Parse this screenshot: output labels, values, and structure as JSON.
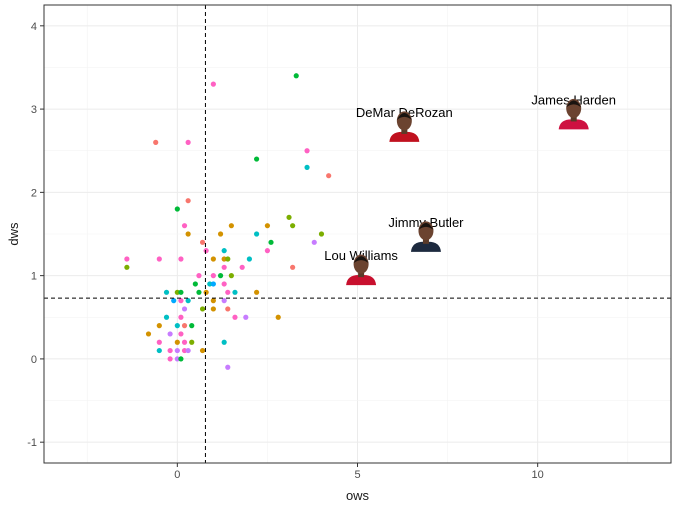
{
  "chart_data": {
    "type": "scatter",
    "xlabel": "ows",
    "ylabel": "dws",
    "xlim": [
      -3.7,
      13.7
    ],
    "ylim": [
      -1.25,
      4.25
    ],
    "x_ticks": [
      0,
      5,
      10
    ],
    "y_ticks": [
      -1,
      0,
      1,
      2,
      3,
      4
    ],
    "x_tick_labels": [
      "0",
      "5",
      "10"
    ],
    "y_tick_labels": [
      "-1",
      "0",
      "1",
      "2",
      "3",
      "4"
    ],
    "grid": true,
    "legend": "none",
    "reference_lines": {
      "vertical_x": 0.78,
      "horizontal_y": 0.73
    },
    "palette": [
      "#F8766D",
      "#7CAE00",
      "#00BFC4",
      "#C77CFF",
      "#FF61C3",
      "#D39200",
      "#00BA38",
      "#00A9FF"
    ],
    "points": [
      {
        "x": 3.3,
        "y": 3.4,
        "c": 6
      },
      {
        "x": 1.0,
        "y": 3.3,
        "c": 4
      },
      {
        "x": -0.6,
        "y": 2.6,
        "c": 0
      },
      {
        "x": 0.3,
        "y": 2.6,
        "c": 4
      },
      {
        "x": 2.2,
        "y": 2.4,
        "c": 6
      },
      {
        "x": 3.6,
        "y": 2.5,
        "c": 4
      },
      {
        "x": 3.6,
        "y": 2.3,
        "c": 2
      },
      {
        "x": 4.2,
        "y": 2.2,
        "c": 0
      },
      {
        "x": 0.3,
        "y": 1.9,
        "c": 0
      },
      {
        "x": 0.0,
        "y": 1.8,
        "c": 6
      },
      {
        "x": 3.1,
        "y": 1.7,
        "c": 1
      },
      {
        "x": 0.2,
        "y": 1.6,
        "c": 4
      },
      {
        "x": 1.5,
        "y": 1.6,
        "c": 5
      },
      {
        "x": 2.5,
        "y": 1.6,
        "c": 5
      },
      {
        "x": 3.2,
        "y": 1.6,
        "c": 1
      },
      {
        "x": 0.3,
        "y": 1.5,
        "c": 5
      },
      {
        "x": 1.2,
        "y": 1.5,
        "c": 5
      },
      {
        "x": 2.2,
        "y": 1.5,
        "c": 2
      },
      {
        "x": 4.0,
        "y": 1.5,
        "c": 1
      },
      {
        "x": 0.7,
        "y": 1.4,
        "c": 0
      },
      {
        "x": 2.6,
        "y": 1.4,
        "c": 6
      },
      {
        "x": 3.8,
        "y": 1.4,
        "c": 3
      },
      {
        "x": 0.8,
        "y": 1.3,
        "c": 4
      },
      {
        "x": 1.3,
        "y": 1.3,
        "c": 2
      },
      {
        "x": 2.5,
        "y": 1.3,
        "c": 4
      },
      {
        "x": -1.4,
        "y": 1.2,
        "c": 4
      },
      {
        "x": -0.5,
        "y": 1.2,
        "c": 4
      },
      {
        "x": 0.1,
        "y": 1.2,
        "c": 4
      },
      {
        "x": 1.0,
        "y": 1.2,
        "c": 5
      },
      {
        "x": 1.3,
        "y": 1.2,
        "c": 5
      },
      {
        "x": 1.4,
        "y": 1.2,
        "c": 1
      },
      {
        "x": 2.0,
        "y": 1.2,
        "c": 2
      },
      {
        "x": -1.4,
        "y": 1.1,
        "c": 1
      },
      {
        "x": 1.3,
        "y": 1.1,
        "c": 4
      },
      {
        "x": 1.8,
        "y": 1.1,
        "c": 4
      },
      {
        "x": 3.2,
        "y": 1.1,
        "c": 0
      },
      {
        "x": 0.6,
        "y": 1.0,
        "c": 4
      },
      {
        "x": 1.0,
        "y": 1.0,
        "c": 4
      },
      {
        "x": 1.2,
        "y": 1.0,
        "c": 6
      },
      {
        "x": 1.5,
        "y": 1.0,
        "c": 1
      },
      {
        "x": 0.5,
        "y": 0.9,
        "c": 6
      },
      {
        "x": 0.9,
        "y": 0.9,
        "c": 2
      },
      {
        "x": 1.0,
        "y": 0.9,
        "c": 7
      },
      {
        "x": 1.3,
        "y": 0.9,
        "c": 4
      },
      {
        "x": -0.3,
        "y": 0.8,
        "c": 2
      },
      {
        "x": 0.0,
        "y": 0.8,
        "c": 1
      },
      {
        "x": 0.1,
        "y": 0.8,
        "c": 6
      },
      {
        "x": 0.6,
        "y": 0.8,
        "c": 6
      },
      {
        "x": 0.8,
        "y": 0.8,
        "c": 5
      },
      {
        "x": 1.4,
        "y": 0.8,
        "c": 4
      },
      {
        "x": 1.6,
        "y": 0.8,
        "c": 2
      },
      {
        "x": 2.2,
        "y": 0.8,
        "c": 5
      },
      {
        "x": -0.1,
        "y": 0.7,
        "c": 7
      },
      {
        "x": 0.1,
        "y": 0.7,
        "c": 4
      },
      {
        "x": 0.3,
        "y": 0.7,
        "c": 2
      },
      {
        "x": 1.0,
        "y": 0.7,
        "c": 5
      },
      {
        "x": 1.3,
        "y": 0.7,
        "c": 3
      },
      {
        "x": 0.2,
        "y": 0.6,
        "c": 3
      },
      {
        "x": 0.7,
        "y": 0.6,
        "c": 1
      },
      {
        "x": 1.0,
        "y": 0.6,
        "c": 5
      },
      {
        "x": 1.4,
        "y": 0.6,
        "c": 0
      },
      {
        "x": -0.3,
        "y": 0.5,
        "c": 2
      },
      {
        "x": 0.1,
        "y": 0.5,
        "c": 4
      },
      {
        "x": 1.6,
        "y": 0.5,
        "c": 4
      },
      {
        "x": 1.9,
        "y": 0.5,
        "c": 3
      },
      {
        "x": 2.8,
        "y": 0.5,
        "c": 5
      },
      {
        "x": -0.5,
        "y": 0.4,
        "c": 5
      },
      {
        "x": 0.0,
        "y": 0.4,
        "c": 2
      },
      {
        "x": 0.2,
        "y": 0.4,
        "c": 0
      },
      {
        "x": 0.4,
        "y": 0.4,
        "c": 6
      },
      {
        "x": -0.8,
        "y": 0.3,
        "c": 5
      },
      {
        "x": -0.2,
        "y": 0.3,
        "c": 3
      },
      {
        "x": 0.1,
        "y": 0.3,
        "c": 4
      },
      {
        "x": -0.5,
        "y": 0.2,
        "c": 4
      },
      {
        "x": 0.0,
        "y": 0.2,
        "c": 5
      },
      {
        "x": 0.2,
        "y": 0.2,
        "c": 4
      },
      {
        "x": 0.4,
        "y": 0.2,
        "c": 1
      },
      {
        "x": 1.3,
        "y": 0.2,
        "c": 2
      },
      {
        "x": -0.5,
        "y": 0.1,
        "c": 2
      },
      {
        "x": -0.2,
        "y": 0.1,
        "c": 4
      },
      {
        "x": 0.0,
        "y": 0.1,
        "c": 3
      },
      {
        "x": 0.2,
        "y": 0.1,
        "c": 4
      },
      {
        "x": 0.3,
        "y": 0.1,
        "c": 3
      },
      {
        "x": 0.7,
        "y": 0.1,
        "c": 5
      },
      {
        "x": -0.2,
        "y": 0.0,
        "c": 4
      },
      {
        "x": 0.0,
        "y": 0.0,
        "c": 3
      },
      {
        "x": 0.1,
        "y": 0.0,
        "c": 6
      },
      {
        "x": 1.4,
        "y": -0.1,
        "c": 3
      }
    ],
    "highlights": [
      {
        "label": "DeMar DeRozan",
        "x": 6.3,
        "y": 2.75,
        "jersey": "#c0111f"
      },
      {
        "label": "James Harden",
        "x": 11.0,
        "y": 2.9,
        "jersey": "#ce1141"
      },
      {
        "label": "Jimmy Butler",
        "x": 6.9,
        "y": 1.43,
        "jersey": "#1d2a3f"
      },
      {
        "label": "Lou Williams",
        "x": 5.1,
        "y": 1.03,
        "jersey": "#c8102e"
      }
    ]
  }
}
